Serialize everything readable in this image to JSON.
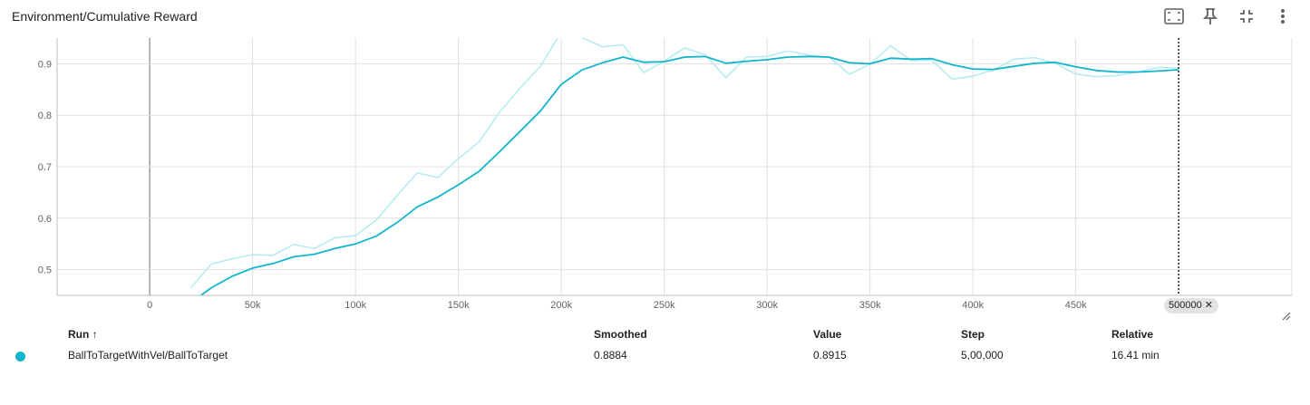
{
  "card": {
    "title": "Environment/Cumulative Reward",
    "toolbar": [
      "fit-to-data-icon",
      "pin-icon",
      "collapse-icon",
      "more-vert-icon"
    ]
  },
  "colors": {
    "smoothed": "#12b5cb",
    "raw": "#b2ebf2",
    "grid": "#e0e0e0",
    "axis": "#9e9e9e"
  },
  "chart_data": {
    "type": "line",
    "title": "Environment/Cumulative Reward",
    "xlim": [
      -45000,
      555000
    ],
    "ylim": [
      0.45,
      0.95
    ],
    "x_ticks": [
      0,
      50000,
      100000,
      150000,
      200000,
      250000,
      300000,
      350000,
      400000,
      450000
    ],
    "x_tick_labels": [
      "0",
      "50k",
      "100k",
      "150k",
      "200k",
      "250k",
      "300k",
      "350k",
      "400k",
      "450k"
    ],
    "y_ticks": [
      0.5,
      0.6,
      0.7,
      0.8,
      0.9
    ],
    "y_tick_labels": [
      "0.5",
      "0.6",
      "0.7",
      "0.8",
      "0.9"
    ],
    "grid": true,
    "cursor_step": 500000,
    "cursor_label": "500000",
    "series": [
      {
        "role": "raw",
        "x": [
          20000,
          30000,
          40000,
          50000,
          60000,
          70000,
          80000,
          90000,
          100000,
          110000,
          120000,
          130000,
          140000,
          150000,
          160000,
          170000,
          180000,
          190000,
          200000,
          210000,
          220000,
          230000,
          240000,
          250000,
          260000,
          270000,
          280000,
          290000,
          300000,
          310000,
          320000,
          330000,
          340000,
          350000,
          360000,
          370000,
          380000,
          390000,
          400000,
          410000,
          420000,
          430000,
          440000,
          450000,
          460000,
          470000,
          480000,
          490000,
          500000
        ],
        "values": [
          0.465,
          0.511,
          0.521,
          0.529,
          0.528,
          0.549,
          0.541,
          0.562,
          0.566,
          0.596,
          0.643,
          0.688,
          0.679,
          0.716,
          0.748,
          0.806,
          0.853,
          0.896,
          0.962,
          0.951,
          0.933,
          0.937,
          0.883,
          0.905,
          0.931,
          0.917,
          0.873,
          0.913,
          0.914,
          0.925,
          0.917,
          0.913,
          0.88,
          0.899,
          0.935,
          0.906,
          0.907,
          0.87,
          0.876,
          0.888,
          0.909,
          0.912,
          0.901,
          0.88,
          0.875,
          0.877,
          0.884,
          0.893,
          0.8915
        ]
      },
      {
        "role": "smoothed",
        "x": [
          20000,
          30000,
          40000,
          50000,
          60000,
          70000,
          80000,
          90000,
          100000,
          110000,
          120000,
          130000,
          140000,
          150000,
          160000,
          170000,
          180000,
          190000,
          200000,
          210000,
          220000,
          230000,
          240000,
          250000,
          260000,
          270000,
          280000,
          290000,
          300000,
          310000,
          320000,
          330000,
          340000,
          350000,
          360000,
          370000,
          380000,
          390000,
          400000,
          410000,
          420000,
          430000,
          440000,
          450000,
          460000,
          470000,
          480000,
          490000,
          500000
        ],
        "values": [
          0.436,
          0.465,
          0.487,
          0.503,
          0.512,
          0.525,
          0.53,
          0.541,
          0.55,
          0.565,
          0.591,
          0.622,
          0.641,
          0.665,
          0.691,
          0.729,
          0.769,
          0.809,
          0.86,
          0.888,
          0.902,
          0.913,
          0.903,
          0.904,
          0.913,
          0.914,
          0.901,
          0.905,
          0.908,
          0.913,
          0.914,
          0.913,
          0.902,
          0.9,
          0.911,
          0.909,
          0.91,
          0.898,
          0.89,
          0.889,
          0.895,
          0.901,
          0.903,
          0.894,
          0.887,
          0.884,
          0.884,
          0.886,
          0.8884
        ]
      }
    ]
  },
  "table": {
    "headers": {
      "run": "Run ↑",
      "smoothed": "Smoothed",
      "value": "Value",
      "step": "Step",
      "relative": "Relative"
    },
    "rows": [
      {
        "run": "BallToTargetWithVel/BallToTarget",
        "smoothed": "0.8884",
        "value": "0.8915",
        "step": "5,00,000",
        "relative": "16.41 min",
        "color": "#12b5cb"
      }
    ]
  }
}
